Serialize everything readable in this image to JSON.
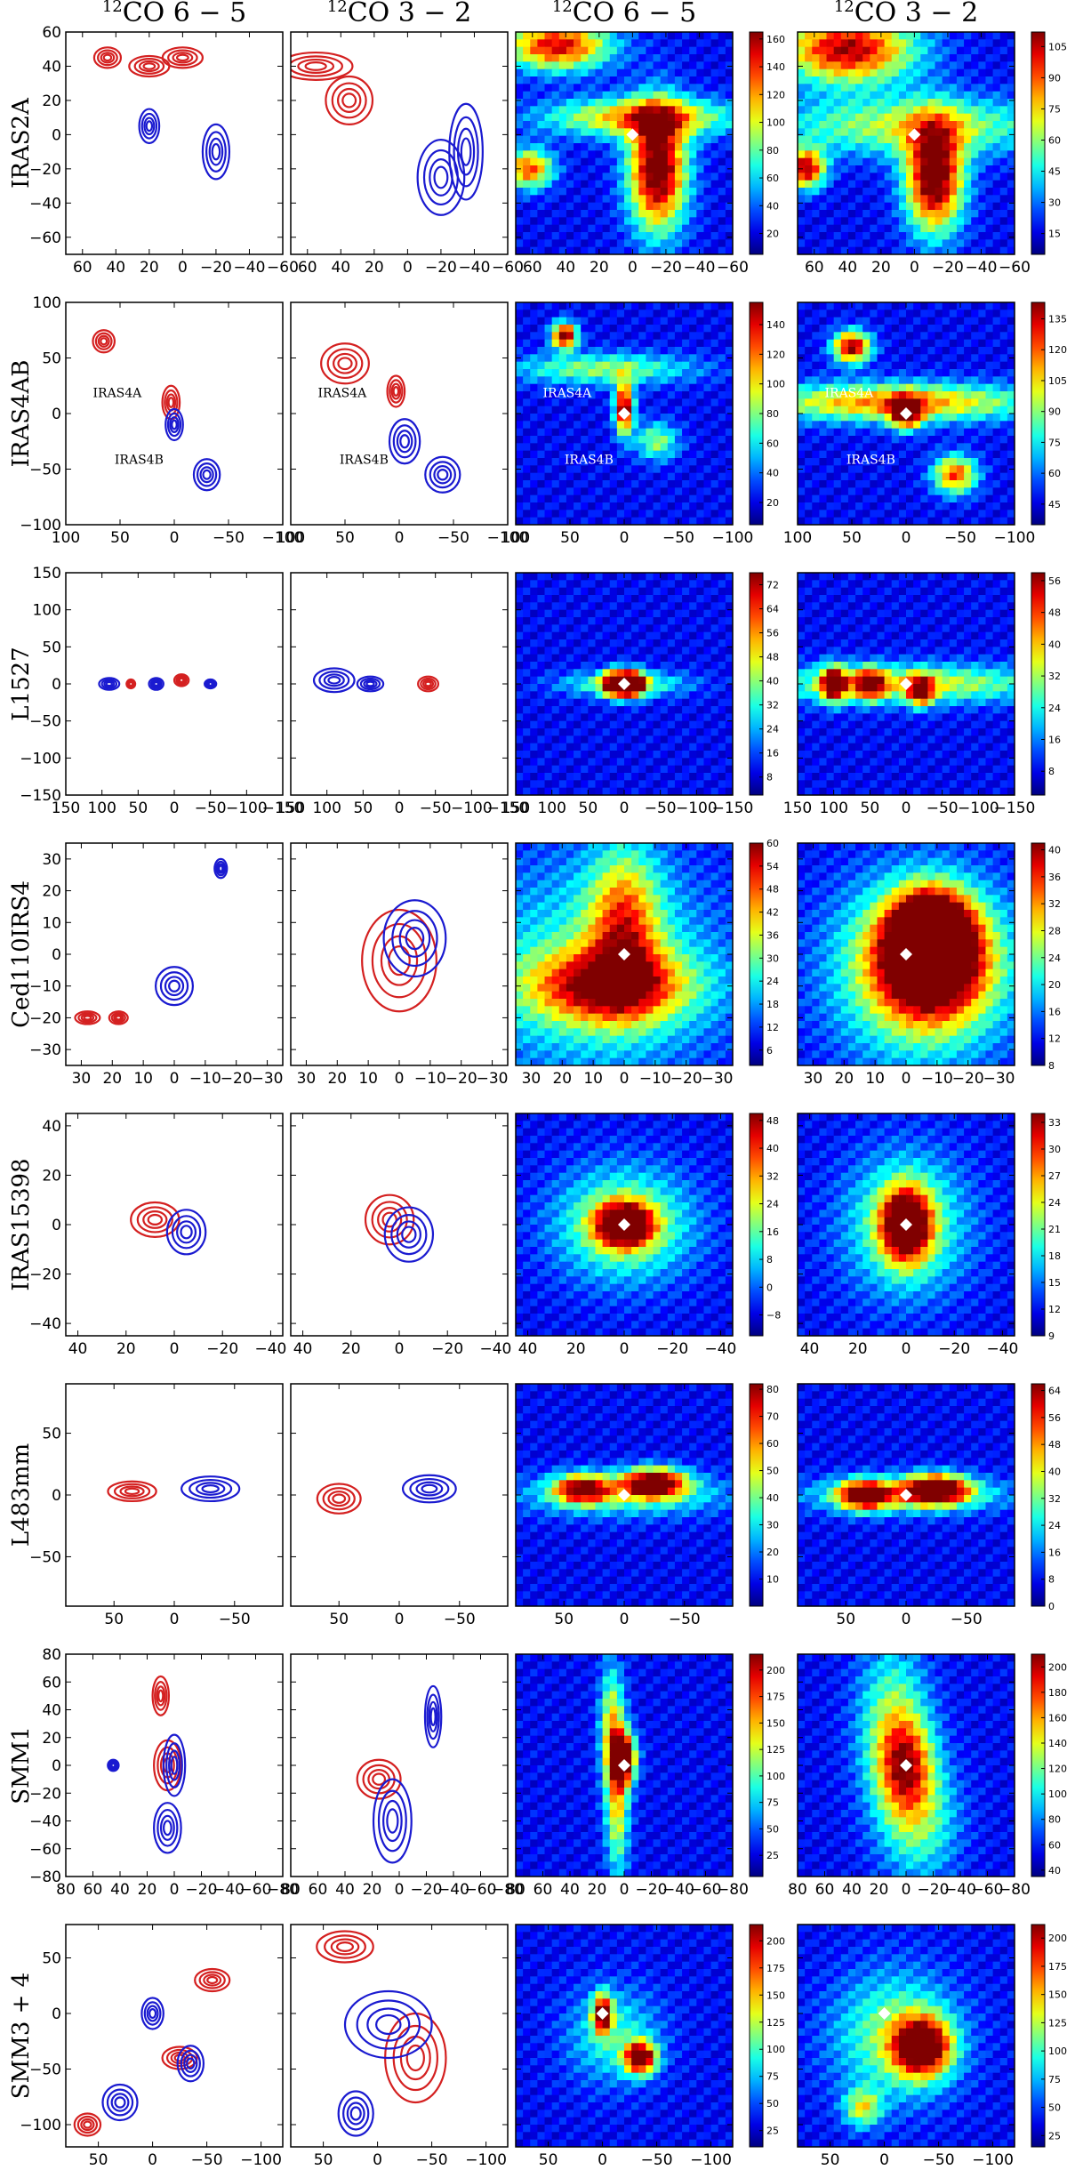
{
  "column_titles": [
    "12CO 6 − 5",
    "12CO 3 − 2",
    "12CO 6 − 5",
    "12CO 3 − 2"
  ],
  "colors": {
    "red_contour": "#d42020",
    "blue_contour": "#1a1ad0"
  },
  "colormap": "jet",
  "chart_data": [
    {
      "type": "contour",
      "row": "IRAS2A",
      "column_title": "12CO 6 − 5",
      "xlim": [
        70,
        -60
      ],
      "ylim": [
        -70,
        60
      ],
      "xticks": [
        60,
        40,
        20,
        0,
        -20,
        -40,
        -60
      ],
      "yticks": [
        -60,
        -40,
        -20,
        0,
        20,
        40,
        60
      ],
      "series": [
        "red",
        "blue"
      ]
    },
    {
      "type": "contour",
      "row": "IRAS2A",
      "column_title": "12CO 3 − 2",
      "xlim": [
        70,
        -60
      ],
      "ylim": [
        -70,
        60
      ],
      "xticks": [
        60,
        40,
        20,
        0,
        -20,
        -40,
        -60
      ],
      "yticks": [
        -60,
        -40,
        -20,
        0,
        20,
        40,
        60
      ],
      "series": [
        "red",
        "blue"
      ]
    },
    {
      "type": "heatmap",
      "row": "IRAS2A",
      "column_title": "12CO 6 − 5",
      "xlim": [
        70,
        -60
      ],
      "ylim": [
        -70,
        60
      ],
      "xticks": [
        60,
        40,
        20,
        0,
        -20,
        -40,
        -60
      ],
      "yticks": [
        -60,
        -40,
        -20,
        0,
        20,
        40,
        60
      ],
      "colorbar_ticks": [
        20,
        40,
        60,
        80,
        100,
        120,
        140,
        160
      ],
      "colorbar_range": [
        5,
        165
      ]
    },
    {
      "type": "heatmap",
      "row": "IRAS2A",
      "column_title": "12CO 3 − 2",
      "xlim": [
        70,
        -60
      ],
      "ylim": [
        -70,
        60
      ],
      "xticks": [
        60,
        40,
        20,
        0,
        -20,
        -40,
        -60
      ],
      "yticks": [
        -60,
        -40,
        -20,
        0,
        20,
        40,
        60
      ],
      "colorbar_ticks": [
        15,
        30,
        45,
        60,
        75,
        90,
        105
      ],
      "colorbar_range": [
        5,
        112
      ]
    },
    {
      "type": "contour",
      "row": "IRAS4AB",
      "column_title": "12CO 6 − 5",
      "xlim": [
        100,
        -100
      ],
      "ylim": [
        -100,
        100
      ],
      "xticks": [
        100,
        50,
        0,
        -50,
        -100
      ],
      "yticks": [
        -100,
        -50,
        0,
        50,
        100
      ],
      "annotations": [
        "IRAS4A",
        "IRAS4B"
      ],
      "series": [
        "red",
        "blue"
      ]
    },
    {
      "type": "contour",
      "row": "IRAS4AB",
      "column_title": "12CO 3 − 2",
      "xlim": [
        100,
        -100
      ],
      "ylim": [
        -100,
        100
      ],
      "xticks": [
        100,
        50,
        0,
        -50,
        -100
      ],
      "yticks": [
        -100,
        -50,
        0,
        50,
        100
      ],
      "annotations": [
        "IRAS4A",
        "IRAS4B"
      ],
      "series": [
        "red",
        "blue"
      ]
    },
    {
      "type": "heatmap",
      "row": "IRAS4AB",
      "column_title": "12CO 6 − 5",
      "xlim": [
        100,
        -100
      ],
      "ylim": [
        -100,
        100
      ],
      "xticks": [
        100,
        50,
        0,
        -50,
        -100
      ],
      "yticks": [
        -100,
        -50,
        0,
        50,
        100
      ],
      "annotations": [
        "IRAS4A",
        "IRAS4B"
      ],
      "colorbar_ticks": [
        20,
        40,
        60,
        80,
        100,
        120,
        140
      ],
      "colorbar_range": [
        5,
        155
      ]
    },
    {
      "type": "heatmap",
      "row": "IRAS4AB",
      "column_title": "12CO 3 − 2",
      "xlim": [
        100,
        -100
      ],
      "ylim": [
        -100,
        100
      ],
      "xticks": [
        100,
        50,
        0,
        -50,
        -100
      ],
      "yticks": [
        -100,
        -50,
        0,
        50,
        100
      ],
      "annotations": [
        "IRAS4A",
        "IRAS4B"
      ],
      "colorbar_ticks": [
        45,
        60,
        75,
        90,
        105,
        120,
        135
      ],
      "colorbar_range": [
        35,
        143
      ]
    },
    {
      "type": "contour",
      "row": "L1527",
      "column_title": "12CO 6 − 5",
      "xlim": [
        150,
        -150
      ],
      "ylim": [
        -150,
        150
      ],
      "xticks": [
        150,
        100,
        50,
        0,
        -50,
        -100,
        -150
      ],
      "yticks": [
        -150,
        -100,
        -50,
        0,
        50,
        100,
        150
      ],
      "series": [
        "red",
        "blue"
      ]
    },
    {
      "type": "contour",
      "row": "L1527",
      "column_title": "12CO 3 − 2",
      "xlim": [
        150,
        -150
      ],
      "ylim": [
        -150,
        150
      ],
      "xticks": [
        150,
        100,
        50,
        0,
        -50,
        -100,
        -150
      ],
      "yticks": [
        -150,
        -100,
        -50,
        0,
        50,
        100,
        150
      ],
      "series": [
        "red",
        "blue"
      ]
    },
    {
      "type": "heatmap",
      "row": "L1527",
      "column_title": "12CO 6 − 5",
      "xlim": [
        150,
        -150
      ],
      "ylim": [
        -150,
        150
      ],
      "xticks": [
        150,
        100,
        50,
        0,
        -50,
        -100,
        -150
      ],
      "yticks": [
        -150,
        -100,
        -50,
        0,
        50,
        100,
        150
      ],
      "colorbar_ticks": [
        8,
        16,
        24,
        32,
        40,
        48,
        56,
        64,
        72
      ],
      "colorbar_range": [
        2,
        76
      ]
    },
    {
      "type": "heatmap",
      "row": "L1527",
      "column_title": "12CO 3 − 2",
      "xlim": [
        150,
        -150
      ],
      "ylim": [
        -150,
        150
      ],
      "xticks": [
        150,
        100,
        50,
        0,
        -50,
        -100,
        -150
      ],
      "yticks": [
        -150,
        -100,
        -50,
        0,
        50,
        100,
        150
      ],
      "colorbar_ticks": [
        8,
        16,
        24,
        32,
        40,
        48,
        56
      ],
      "colorbar_range": [
        2,
        58
      ]
    },
    {
      "type": "contour",
      "row": "Ced110IRS4",
      "column_title": "12CO 6 − 5",
      "xlim": [
        35,
        -35
      ],
      "ylim": [
        -35,
        35
      ],
      "xticks": [
        30,
        20,
        10,
        0,
        -10,
        -20,
        -30
      ],
      "yticks": [
        -30,
        -20,
        -10,
        0,
        10,
        20,
        30
      ],
      "series": [
        "red",
        "blue"
      ]
    },
    {
      "type": "contour",
      "row": "Ced110IRS4",
      "column_title": "12CO 3 − 2",
      "xlim": [
        35,
        -35
      ],
      "ylim": [
        -35,
        35
      ],
      "xticks": [
        30,
        20,
        10,
        0,
        -10,
        -20,
        -30
      ],
      "yticks": [
        -30,
        -20,
        -10,
        0,
        10,
        20,
        30
      ],
      "series": [
        "red",
        "blue"
      ]
    },
    {
      "type": "heatmap",
      "row": "Ced110IRS4",
      "column_title": "12CO 6 − 5",
      "xlim": [
        35,
        -35
      ],
      "ylim": [
        -35,
        35
      ],
      "xticks": [
        30,
        20,
        10,
        0,
        -10,
        -20,
        -30
      ],
      "yticks": [
        -30,
        -20,
        -10,
        0,
        10,
        20,
        30
      ],
      "colorbar_ticks": [
        6,
        12,
        18,
        24,
        30,
        36,
        42,
        48,
        54,
        60
      ],
      "colorbar_range": [
        2,
        60
      ]
    },
    {
      "type": "heatmap",
      "row": "Ced110IRS4",
      "column_title": "12CO 3 − 2",
      "xlim": [
        35,
        -35
      ],
      "ylim": [
        -35,
        35
      ],
      "xticks": [
        30,
        20,
        10,
        0,
        -10,
        -20,
        -30
      ],
      "yticks": [
        -30,
        -20,
        -10,
        0,
        10,
        20,
        30
      ],
      "colorbar_ticks": [
        8,
        12,
        16,
        20,
        24,
        28,
        32,
        36,
        40
      ],
      "colorbar_range": [
        8,
        41
      ]
    },
    {
      "type": "contour",
      "row": "IRAS15398",
      "column_title": "12CO 6 − 5",
      "xlim": [
        45,
        -45
      ],
      "ylim": [
        -45,
        45
      ],
      "xticks": [
        40,
        20,
        0,
        -20,
        -40
      ],
      "yticks": [
        -40,
        -20,
        0,
        20,
        40
      ],
      "series": [
        "red",
        "blue"
      ]
    },
    {
      "type": "contour",
      "row": "IRAS15398",
      "column_title": "12CO 3 − 2",
      "xlim": [
        45,
        -45
      ],
      "ylim": [
        -45,
        45
      ],
      "xticks": [
        40,
        20,
        0,
        -20,
        -40
      ],
      "yticks": [
        -40,
        -20,
        0,
        20,
        40
      ],
      "series": [
        "red",
        "blue"
      ]
    },
    {
      "type": "heatmap",
      "row": "IRAS15398",
      "column_title": "12CO 6 − 5",
      "xlim": [
        45,
        -45
      ],
      "ylim": [
        -45,
        45
      ],
      "xticks": [
        40,
        20,
        0,
        -20,
        -40
      ],
      "yticks": [
        -40,
        -20,
        0,
        20,
        40
      ],
      "colorbar_ticks": [
        -8,
        0,
        8,
        16,
        24,
        32,
        40,
        48
      ],
      "colorbar_range": [
        -14,
        50
      ]
    },
    {
      "type": "heatmap",
      "row": "IRAS15398",
      "column_title": "12CO 3 − 2",
      "xlim": [
        45,
        -45
      ],
      "ylim": [
        -45,
        45
      ],
      "xticks": [
        40,
        20,
        0,
        -20,
        -40
      ],
      "yticks": [
        -40,
        -20,
        0,
        20,
        40
      ],
      "colorbar_ticks": [
        9,
        12,
        15,
        18,
        21,
        24,
        27,
        30,
        33
      ],
      "colorbar_range": [
        9,
        34
      ]
    },
    {
      "type": "contour",
      "row": "L483mm",
      "column_title": "12CO 6 − 5",
      "xlim": [
        90,
        -90
      ],
      "ylim": [
        -90,
        90
      ],
      "xticks": [
        50,
        0,
        -50
      ],
      "yticks": [
        -50,
        0,
        50
      ],
      "series": [
        "red",
        "blue"
      ]
    },
    {
      "type": "contour",
      "row": "L483mm",
      "column_title": "12CO 3 − 2",
      "xlim": [
        90,
        -90
      ],
      "ylim": [
        -90,
        90
      ],
      "xticks": [
        50,
        0,
        -50
      ],
      "yticks": [
        -50,
        0,
        50
      ],
      "series": [
        "red",
        "blue"
      ]
    },
    {
      "type": "heatmap",
      "row": "L483mm",
      "column_title": "12CO 6 − 5",
      "xlim": [
        90,
        -90
      ],
      "ylim": [
        -90,
        90
      ],
      "xticks": [
        50,
        0,
        -50
      ],
      "yticks": [
        -50,
        0,
        50
      ],
      "colorbar_ticks": [
        10,
        20,
        30,
        40,
        50,
        60,
        70,
        80
      ],
      "colorbar_range": [
        0,
        82
      ]
    },
    {
      "type": "heatmap",
      "row": "L483mm",
      "column_title": "12CO 3 − 2",
      "xlim": [
        90,
        -90
      ],
      "ylim": [
        -90,
        90
      ],
      "xticks": [
        50,
        0,
        -50
      ],
      "yticks": [
        -50,
        0,
        50
      ],
      "colorbar_ticks": [
        0,
        8,
        16,
        24,
        32,
        40,
        48,
        56,
        64
      ],
      "colorbar_range": [
        0,
        66
      ]
    },
    {
      "type": "contour",
      "row": "SMM1",
      "column_title": "12CO 6 − 5",
      "xlim": [
        80,
        -80
      ],
      "ylim": [
        -80,
        80
      ],
      "xticks": [
        80,
        60,
        40,
        20,
        0,
        -20,
        -40,
        -60,
        -80
      ],
      "yticks": [
        -80,
        -60,
        -40,
        -20,
        0,
        20,
        40,
        60,
        80
      ],
      "series": [
        "red",
        "blue"
      ]
    },
    {
      "type": "contour",
      "row": "SMM1",
      "column_title": "12CO 3 − 2",
      "xlim": [
        80,
        -80
      ],
      "ylim": [
        -80,
        80
      ],
      "xticks": [
        80,
        60,
        40,
        20,
        0,
        -20,
        -40,
        -60,
        -80
      ],
      "yticks": [
        -80,
        -60,
        -40,
        -20,
        0,
        20,
        40,
        60,
        80
      ],
      "series": [
        "red",
        "blue"
      ]
    },
    {
      "type": "heatmap",
      "row": "SMM1",
      "column_title": "12CO 6 − 5",
      "xlim": [
        80,
        -80
      ],
      "ylim": [
        -80,
        80
      ],
      "xticks": [
        80,
        60,
        40,
        20,
        0,
        -20,
        -40,
        -60,
        -80
      ],
      "yticks": [
        -80,
        -60,
        -40,
        -20,
        0,
        20,
        40,
        60,
        80
      ],
      "colorbar_ticks": [
        25,
        50,
        75,
        100,
        125,
        150,
        175,
        200
      ],
      "colorbar_range": [
        5,
        215
      ]
    },
    {
      "type": "heatmap",
      "row": "SMM1",
      "column_title": "12CO 3 − 2",
      "xlim": [
        80,
        -80
      ],
      "ylim": [
        -80,
        80
      ],
      "xticks": [
        80,
        60,
        40,
        20,
        0,
        -20,
        -40,
        -60,
        -80
      ],
      "yticks": [
        -80,
        -60,
        -40,
        -20,
        0,
        20,
        40,
        60,
        80
      ],
      "colorbar_ticks": [
        40,
        60,
        80,
        100,
        120,
        140,
        160,
        180,
        200
      ],
      "colorbar_range": [
        35,
        210
      ]
    },
    {
      "type": "contour",
      "row": "SMM3 + 4",
      "column_title": "12CO 6 − 5",
      "xlim": [
        80,
        -120
      ],
      "ylim": [
        -120,
        80
      ],
      "xticks": [
        50,
        0,
        -50,
        -100
      ],
      "yticks": [
        -100,
        -50,
        0,
        50
      ],
      "series": [
        "red",
        "blue"
      ]
    },
    {
      "type": "contour",
      "row": "SMM3 + 4",
      "column_title": "12CO 3 − 2",
      "xlim": [
        80,
        -120
      ],
      "ylim": [
        -120,
        80
      ],
      "xticks": [
        50,
        0,
        -50,
        -100
      ],
      "yticks": [
        -100,
        -50,
        0,
        50
      ],
      "series": [
        "red",
        "blue"
      ]
    },
    {
      "type": "heatmap",
      "row": "SMM3 + 4",
      "column_title": "12CO 6 − 5",
      "xlim": [
        80,
        -120
      ],
      "ylim": [
        -120,
        80
      ],
      "xticks": [
        50,
        0,
        -50,
        -100
      ],
      "yticks": [
        -100,
        -50,
        0,
        50
      ],
      "colorbar_ticks": [
        25,
        50,
        75,
        100,
        125,
        150,
        175,
        200
      ],
      "colorbar_range": [
        10,
        215
      ]
    },
    {
      "type": "heatmap",
      "row": "SMM3 + 4",
      "column_title": "12CO 3 − 2",
      "xlim": [
        80,
        -120
      ],
      "ylim": [
        -120,
        80
      ],
      "xticks": [
        50,
        0,
        -50,
        -100
      ],
      "yticks": [
        -100,
        -50,
        0,
        50
      ],
      "colorbar_ticks": [
        25,
        50,
        75,
        100,
        125,
        150,
        175,
        200
      ],
      "colorbar_range": [
        15,
        212
      ]
    }
  ]
}
